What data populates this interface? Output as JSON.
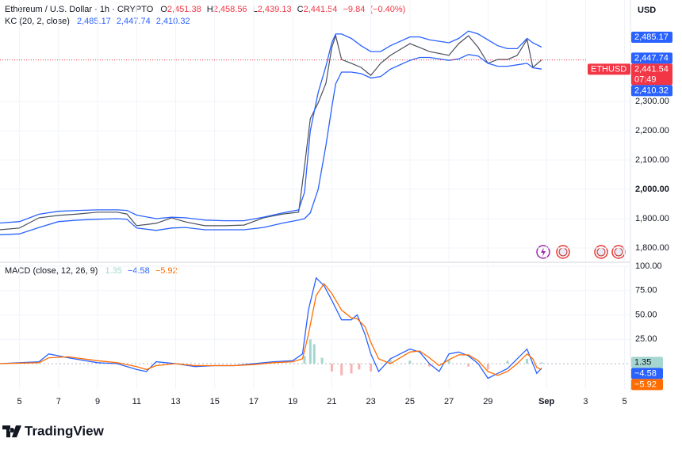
{
  "chart_data": [
    {
      "type": "line",
      "title": "Ethereum / U.S. Dollar · 1h · CRYPTO",
      "ohlc": [
        {
          "key": "O",
          "value": 2451.38,
          "label": "2,451.38"
        },
        {
          "key": "H",
          "value": 2458.56,
          "label": "2,458.56"
        },
        {
          "key": "L",
          "value": 2439.13,
          "label": "2,439.13"
        },
        {
          "key": "C",
          "value": 2441.54,
          "label": "2,441.54"
        }
      ],
      "change": {
        "value": -9.84,
        "label": "−9.84"
      },
      "change_pct": {
        "value": -0.4,
        "label": "(−0.40%)"
      },
      "indicator": "KC (20, 2, close)",
      "indicator_values": [
        {
          "value": 2485.17,
          "label": "2,485.17"
        },
        {
          "value": 2447.74,
          "label": "2,447.74"
        },
        {
          "value": 2410.32,
          "label": "2,410.32"
        }
      ],
      "currency": "USD",
      "symbol": "ETHUSD",
      "last": {
        "value": 2441.54,
        "label": "2,441.54"
      },
      "countdown": "07:49",
      "brand": "TradingView",
      "x": [
        4,
        5,
        6,
        7,
        8,
        9,
        10,
        10.5,
        11,
        12,
        12.8,
        13.5,
        14.5,
        15.5,
        16.5,
        17.5,
        18.5,
        19.3,
        19.6,
        19.9,
        20.3,
        20.7,
        21,
        21.2,
        21.5,
        22,
        22.5,
        23,
        23.5,
        24,
        25,
        25.5,
        26,
        27,
        27.5,
        28,
        28.5,
        29,
        29.5,
        30,
        30.5,
        31,
        31.3,
        31.75
      ],
      "series": [
        {
          "color": "#4a4f5c",
          "values": [
            1862,
            1868,
            1903,
            1911,
            1916,
            1922,
            1922,
            1916,
            1876,
            1884,
            1903,
            1889,
            1876,
            1876,
            1878,
            1903,
            1916,
            1922,
            2078,
            2241,
            2295,
            2362,
            2484,
            2524,
            2443,
            2430,
            2416,
            2389,
            2430,
            2457,
            2497,
            2484,
            2470,
            2457,
            2497,
            2524,
            2484,
            2430,
            2443,
            2443,
            2457,
            2511,
            2416,
            2441.54
          ]
        },
        {
          "color": "#2962ff",
          "values": [
            1885,
            1890,
            1915,
            1925,
            1928,
            1930,
            1930,
            1928,
            1912,
            1900,
            1905,
            1903,
            1895,
            1893,
            1893,
            1905,
            1920,
            1930,
            1990,
            2200,
            2330,
            2420,
            2500,
            2530,
            2530,
            2515,
            2490,
            2470,
            2470,
            2490,
            2520,
            2520,
            2510,
            2500,
            2515,
            2540,
            2530,
            2510,
            2490,
            2480,
            2480,
            2515,
            2500,
            2485.17
          ]
        },
        {
          "color": "#2962ff",
          "values": [
            1845,
            1848,
            1870,
            1890,
            1895,
            1898,
            1900,
            1898,
            1868,
            1860,
            1868,
            1870,
            1862,
            1862,
            1862,
            1870,
            1885,
            1895,
            1900,
            1920,
            2000,
            2150,
            2280,
            2360,
            2400,
            2400,
            2395,
            2380,
            2385,
            2410,
            2440,
            2450,
            2450,
            2440,
            2445,
            2460,
            2455,
            2430,
            2420,
            2420,
            2425,
            2430,
            2415,
            2410.32
          ]
        }
      ],
      "xlim": [
        4,
        36.3
      ],
      "xticks": [
        5,
        7,
        9,
        11,
        13,
        15,
        17,
        19,
        21,
        23,
        25,
        27,
        29,
        {
          "value": 32,
          "label": "Sep"
        },
        {
          "value": 34,
          "label": "3"
        },
        {
          "value": 36,
          "label": "5"
        }
      ],
      "ylim": [
        1754,
        2646
      ],
      "yticks": [
        {
          "value": 1800,
          "label": "1,800.00"
        },
        {
          "value": 1900,
          "label": "1,900.00"
        },
        {
          "value": 2000,
          "label": "2,000.00"
        },
        {
          "value": 2100,
          "label": "2,100.00"
        },
        {
          "value": 2200,
          "label": "2,200.00"
        },
        {
          "value": 2300,
          "label": "2,300.00"
        }
      ],
      "grid": true
    },
    {
      "type": "macd",
      "title": "MACD (close, 12, 26, 9)",
      "legend_values": [
        1.35,
        {
          "value": -4.58,
          "label": "−4.58"
        },
        {
          "value": -5.92,
          "label": "−5.92"
        }
      ],
      "x": [
        4,
        6,
        6.5,
        7.5,
        9,
        10,
        11,
        11.5,
        12,
        13,
        14,
        15,
        16,
        17,
        18,
        19,
        19.5,
        19.8,
        20.2,
        20.6,
        21,
        21.5,
        22,
        22.3,
        22.7,
        23,
        23.4,
        24,
        24.5,
        25,
        25.5,
        26,
        26.5,
        27,
        27.5,
        28,
        28.5,
        29,
        29.5,
        30,
        30.5,
        31,
        31.3,
        31.5,
        31.75
      ],
      "series": [
        {
          "color": "#2962ff",
          "values": [
            0,
            2,
            10,
            6,
            1,
            0,
            -6,
            -8,
            2,
            0,
            -3,
            -2,
            -2,
            0,
            2,
            3,
            10,
            55,
            88,
            80,
            65,
            45,
            45,
            50,
            30,
            10,
            -8,
            5,
            10,
            15,
            12,
            0,
            -8,
            10,
            12,
            8,
            0,
            -15,
            -10,
            -5,
            5,
            15,
            0,
            -10,
            -4.58
          ]
        },
        {
          "color": "#ff6d00",
          "values": [
            0,
            1,
            6,
            7,
            3,
            1,
            -3,
            -6,
            -2,
            0,
            -2,
            -2,
            -2,
            -1,
            1,
            2,
            5,
            30,
            70,
            82,
            72,
            55,
            47,
            46,
            38,
            22,
            5,
            0,
            6,
            12,
            13,
            6,
            -2,
            4,
            9,
            9,
            3,
            -8,
            -12,
            -8,
            0,
            10,
            5,
            -4,
            -5.92
          ]
        }
      ],
      "histogram": {
        "x": [
          19.6,
          19.9,
          20.1,
          20.5,
          21,
          21.5,
          22,
          22.4,
          23,
          24,
          25,
          26,
          27,
          28,
          29,
          30,
          31,
          31.75
        ],
        "values": [
          8,
          25,
          20,
          6,
          -8,
          -12,
          -10,
          -6,
          -8,
          4,
          3,
          -3,
          4,
          -3,
          -6,
          3,
          5,
          1.35
        ],
        "colors": [
          "#a5d6d0",
          "#f7b3b2"
        ]
      },
      "ylim": [
        -26,
        100
      ],
      "yticks": [
        {
          "value": 25,
          "label": "25.00"
        },
        {
          "value": 50,
          "label": "50.00"
        },
        {
          "value": 75,
          "label": "75.00"
        },
        {
          "value": 100,
          "label": "100.00"
        }
      ],
      "grid": true
    }
  ]
}
